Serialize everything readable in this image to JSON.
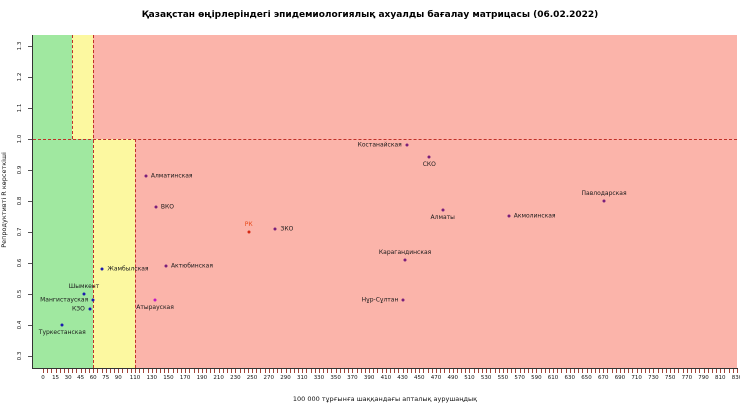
{
  "chart_data": {
    "type": "scatter",
    "title": "Қазақстан өңірлеріндегі эпидемиологиялық ахуалды бағалау матрицасы  (06.02.2022)",
    "xlabel": "100 000 тұрғынға шаққандағы апталық аурушаңдық",
    "ylabel": "Репродуктивті R көрсеткіші",
    "xlim": [
      -12,
      830
    ],
    "ylim": [
      0.261,
      1.335
    ],
    "grid": false,
    "legend": "none",
    "x_tick_values": [
      0,
      15,
      30,
      45,
      60,
      75,
      90,
      110,
      130,
      150,
      170,
      190,
      210,
      230,
      250,
      270,
      290,
      310,
      330,
      350,
      370,
      390,
      410,
      430,
      450,
      470,
      490,
      510,
      530,
      550,
      570,
      590,
      610,
      630,
      650,
      670,
      690,
      710,
      730,
      750,
      770,
      790,
      810,
      830
    ],
    "x_minor_tick_step": 5,
    "y_tick_values": [
      "0.3",
      "0.4",
      "0.5",
      "0.6",
      "0.7",
      "0.8",
      "0.9",
      "1.0",
      "1.1",
      "1.2",
      "1.3"
    ],
    "thresholds": {
      "horizontal_y": 1.0,
      "vertical_upper_x": 35,
      "vertical_full_x": 60,
      "vertical_lower_x": 110
    },
    "zones": {
      "upper": [
        {
          "x0": -12,
          "x1": 35,
          "color": "#a0e8a0"
        },
        {
          "x0": 35,
          "x1": 60,
          "color": "#fcf8a0"
        },
        {
          "x0": 60,
          "x1": 830,
          "color": "#fbb4aa"
        }
      ],
      "lower": [
        {
          "x0": -12,
          "x1": 60,
          "color": "#a0e8a0"
        },
        {
          "x0": 60,
          "x1": 110,
          "color": "#fcf8a0"
        },
        {
          "x0": 110,
          "x1": 830,
          "color": "#fbb4aa"
        }
      ]
    },
    "colors": {
      "dashed_line": "#c03028",
      "x_tick": "#a04438",
      "point_default": "#7a1f7a",
      "point_green_zone": "#1a1aae",
      "point_rk": "#d42814",
      "label_rk": "#e84818"
    },
    "points": [
      {
        "name": "Костанайская",
        "x": 435,
        "y": 0.98,
        "color": "#7a1f7a",
        "label_pos": "left"
      },
      {
        "name": "СКО",
        "x": 462,
        "y": 0.94,
        "color": "#7a1f7a",
        "label_pos": "below"
      },
      {
        "name": "Алматинская",
        "x": 123,
        "y": 0.88,
        "color": "#7a1f7a",
        "label_pos": "right"
      },
      {
        "name": "Павлодарская",
        "x": 671,
        "y": 0.8,
        "color": "#7a1f7a",
        "label_pos": "above"
      },
      {
        "name": "ВКО",
        "x": 135,
        "y": 0.78,
        "color": "#7a1f7a",
        "label_pos": "right"
      },
      {
        "name": "Алматы",
        "x": 478,
        "y": 0.77,
        "color": "#7a1f7a",
        "label_pos": "below"
      },
      {
        "name": "Акмолинская",
        "x": 557,
        "y": 0.75,
        "color": "#7a1f7a",
        "label_pos": "right"
      },
      {
        "name": "ЗКО",
        "x": 278,
        "y": 0.71,
        "color": "#7a1f7a",
        "label_pos": "right"
      },
      {
        "name": "РК",
        "x": 246,
        "y": 0.7,
        "color": "#d42814",
        "label_color": "#e84818",
        "label_pos": "above"
      },
      {
        "name": "Карагандинская",
        "x": 433,
        "y": 0.61,
        "color": "#7a1f7a",
        "label_pos": "above"
      },
      {
        "name": "Актюбинская",
        "x": 147,
        "y": 0.59,
        "color": "#7a1f7a",
        "label_pos": "right"
      },
      {
        "name": "Жамбылская",
        "x": 71,
        "y": 0.58,
        "color": "#1a1aae",
        "label_pos": "right"
      },
      {
        "name": "Шымкент",
        "x": 49,
        "y": 0.5,
        "color": "#1a1aae",
        "label_pos": "above"
      },
      {
        "name": "Мангистауская",
        "x": 60,
        "y": 0.48,
        "color": "#1a1aae",
        "label_pos": "left"
      },
      {
        "name": "Нұр-Сұлтан",
        "x": 431,
        "y": 0.48,
        "color": "#7a1f7a",
        "label_pos": "left"
      },
      {
        "name": "Атырауская",
        "x": 134,
        "y": 0.48,
        "color": "#c218c2",
        "label_pos": "below"
      },
      {
        "name": "КЗО",
        "x": 56,
        "y": 0.45,
        "color": "#1a1aae",
        "label_pos": "left"
      },
      {
        "name": "Туркестанская",
        "x": 23,
        "y": 0.4,
        "color": "#1a1aae",
        "label_pos": "below"
      }
    ]
  }
}
